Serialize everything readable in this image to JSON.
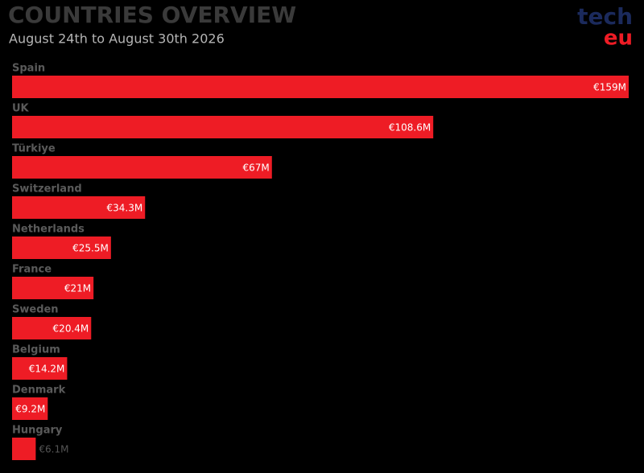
{
  "chart_data": {
    "type": "bar",
    "orientation": "horizontal",
    "title": "COUNTRIES OVERVIEW",
    "subtitle": "August 24th to August 30th 2026",
    "logo": [
      "tech",
      "eu"
    ],
    "categories": [
      "Spain",
      "UK",
      "Türkiye",
      "Switzerland",
      "Netherlands",
      "France",
      "Sweden",
      "Belgium",
      "Denmark",
      "Hungary"
    ],
    "values": [
      159,
      108.6,
      67,
      34.3,
      25.5,
      21,
      20.4,
      14.2,
      9.2,
      6.1
    ],
    "value_labels": [
      "€159M",
      "€108.6M",
      "€67M",
      "€34.3M",
      "€25.5M",
      "€21M",
      "€20.4M",
      "€14.2M",
      "€9.2M",
      "€6.1M"
    ],
    "color": "#ee1c25"
  }
}
